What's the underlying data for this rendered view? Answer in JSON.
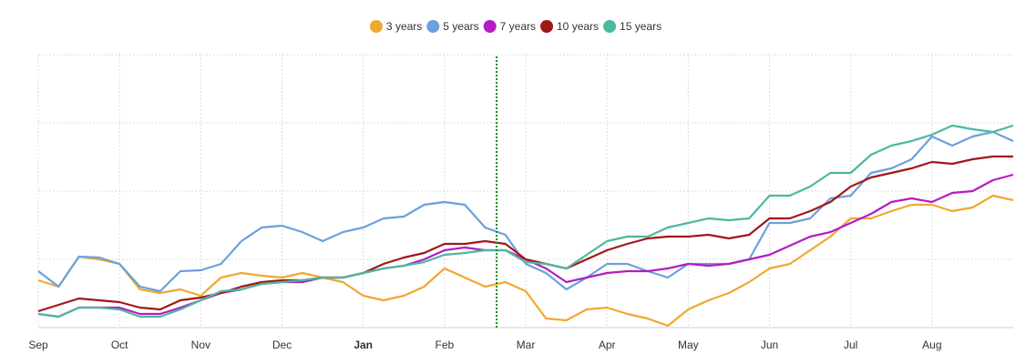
{
  "chart_data": {
    "type": "line",
    "categories": [
      "Sep",
      null,
      null,
      null,
      "Oct",
      null,
      null,
      null,
      "Nov",
      null,
      null,
      null,
      "Dec",
      null,
      null,
      null,
      "Jan",
      null,
      null,
      null,
      "Feb",
      null,
      null,
      null,
      "Mar",
      null,
      null,
      null,
      "Apr",
      null,
      null,
      null,
      "May",
      null,
      null,
      null,
      "Jun",
      null,
      null,
      null,
      "Jul",
      null,
      null,
      null,
      "Aug",
      null,
      null,
      null,
      null
    ],
    "emphasized_category": 16,
    "series": [
      {
        "name": "3 years",
        "color": "#f0a830",
        "values": [
          52,
          45,
          78,
          75,
          70,
          42,
          38,
          42,
          35,
          55,
          60,
          57,
          55,
          60,
          55,
          50,
          35,
          30,
          35,
          45,
          65,
          55,
          45,
          50,
          40,
          10,
          8,
          20,
          22,
          15,
          10,
          2,
          20,
          30,
          38,
          50,
          65,
          70,
          85,
          100,
          120,
          120,
          128,
          135,
          135,
          128,
          132,
          145,
          140
        ]
      },
      {
        "name": "5 years",
        "color": "#6ca0dc",
        "values": [
          62,
          45,
          78,
          77,
          70,
          45,
          40,
          62,
          63,
          70,
          95,
          110,
          112,
          105,
          95,
          105,
          110,
          120,
          122,
          135,
          138,
          135,
          110,
          102,
          70,
          60,
          42,
          55,
          70,
          70,
          62,
          55,
          70,
          70,
          70,
          75,
          115,
          115,
          120,
          142,
          145,
          170,
          175,
          185,
          210,
          200,
          210,
          215,
          205
        ]
      },
      {
        "name": "7 years",
        "color": "#b41cc4",
        "values": [
          15,
          12,
          22,
          22,
          22,
          15,
          15,
          22,
          30,
          38,
          42,
          48,
          50,
          50,
          55,
          55,
          60,
          65,
          68,
          75,
          85,
          88,
          85,
          85,
          75,
          65,
          50,
          55,
          60,
          62,
          62,
          65,
          70,
          68,
          70,
          75,
          80,
          90,
          100,
          105,
          115,
          125,
          138,
          142,
          138,
          148,
          150,
          162,
          168
        ]
      },
      {
        "name": "10 years",
        "color": "#a01818",
        "values": [
          18,
          25,
          32,
          30,
          28,
          22,
          20,
          30,
          33,
          38,
          45,
          50,
          52,
          52,
          55,
          55,
          60,
          70,
          77,
          82,
          92,
          92,
          95,
          92,
          75,
          70,
          65,
          75,
          85,
          92,
          98,
          100,
          100,
          102,
          98,
          102,
          120,
          120,
          128,
          138,
          155,
          165,
          170,
          175,
          182,
          180,
          185,
          188,
          188
        ]
      },
      {
        "name": "15 years",
        "color": "#4cb8a0",
        "values": [
          15,
          12,
          22,
          22,
          20,
          12,
          12,
          20,
          30,
          40,
          42,
          48,
          50,
          52,
          55,
          55,
          60,
          65,
          68,
          72,
          80,
          82,
          85,
          85,
          72,
          70,
          65,
          80,
          95,
          100,
          100,
          110,
          115,
          120,
          118,
          120,
          145,
          145,
          155,
          170,
          170,
          190,
          200,
          205,
          212,
          222,
          218,
          215,
          222
        ]
      }
    ],
    "ylim": [
      0,
      300
    ],
    "yticks": [
      0,
      75,
      150,
      225,
      300
    ],
    "show_ytick_labels": false,
    "grid": true
  }
}
